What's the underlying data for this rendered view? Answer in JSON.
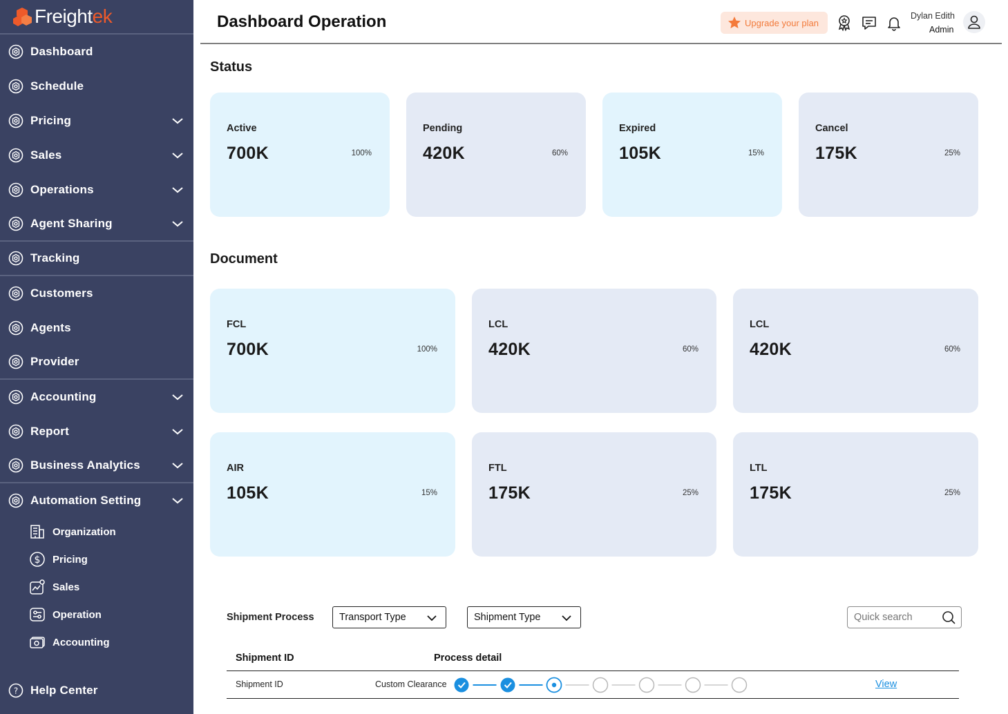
{
  "app": {
    "brand_main": "Freight",
    "brand_accent": "ek",
    "brand_color": "#ee5a2a"
  },
  "sidebar": {
    "items": [
      {
        "label": "Dashboard",
        "icon": "hexagon-icon",
        "chevron": false
      },
      {
        "label": "Schedule",
        "icon": "hexagon-icon",
        "chevron": false
      },
      {
        "label": "Pricing",
        "icon": "hexagon-icon",
        "chevron": true
      },
      {
        "label": "Sales",
        "icon": "hexagon-icon",
        "chevron": true
      },
      {
        "label": "Operations",
        "icon": "hexagon-icon",
        "chevron": true
      },
      {
        "label": "Agent Sharing",
        "icon": "hexagon-icon",
        "chevron": true
      },
      {
        "label": "Tracking",
        "icon": "hexagon-icon",
        "chevron": false
      },
      {
        "label": "Customers",
        "icon": "hexagon-icon",
        "chevron": false
      },
      {
        "label": "Agents",
        "icon": "hexagon-icon",
        "chevron": false
      },
      {
        "label": "Provider",
        "icon": "hexagon-icon",
        "chevron": false
      },
      {
        "label": "Accounting",
        "icon": "hexagon-icon",
        "chevron": true
      },
      {
        "label": "Report",
        "icon": "hexagon-icon",
        "chevron": true
      },
      {
        "label": "Business Analytics",
        "icon": "hexagon-icon",
        "chevron": true
      },
      {
        "label": "Automation Setting",
        "icon": "hexagon-icon",
        "chevron": true
      }
    ],
    "sub_items": [
      {
        "label": "Organization",
        "icon": "building-icon"
      },
      {
        "label": "Pricing",
        "icon": "dollar-icon"
      },
      {
        "label": "Sales",
        "icon": "sales-chart-icon"
      },
      {
        "label": "Operation",
        "icon": "sliders-icon"
      },
      {
        "label": "Accounting",
        "icon": "cash-icon"
      }
    ],
    "help_label": "Help Center"
  },
  "header": {
    "title": "Dashboard Operation",
    "upgrade_label": "Upgrade your plan",
    "user_name": "Dylan Edith",
    "user_role": "Admin"
  },
  "status": {
    "title": "Status",
    "cards": [
      {
        "label": "Active",
        "value": "700K",
        "percent": "100%"
      },
      {
        "label": "Pending",
        "value": "420K",
        "percent": "60%"
      },
      {
        "label": "Expired",
        "value": "105K",
        "percent": "15%"
      },
      {
        "label": "Cancel",
        "value": "175K",
        "percent": "25%"
      }
    ]
  },
  "document": {
    "title": "Document",
    "cards": [
      {
        "label": "FCL",
        "value": "700K",
        "percent": "100%"
      },
      {
        "label": "LCL",
        "value": "420K",
        "percent": "60%"
      },
      {
        "label": "LCL",
        "value": "420K",
        "percent": "60%"
      },
      {
        "label": "AIR",
        "value": "105K",
        "percent": "15%"
      },
      {
        "label": "FTL",
        "value": "175K",
        "percent": "25%"
      },
      {
        "label": "LTL",
        "value": "175K",
        "percent": "25%"
      }
    ]
  },
  "shipment": {
    "label": "Shipment Process",
    "transport_select": "Transport Type",
    "shipment_select": "Shipment Type",
    "search_placeholder": "Quick search",
    "columns": [
      "Shipment ID",
      "Process detail"
    ],
    "rows": [
      {
        "id": "Shipment ID",
        "stage": "Custom Clearance",
        "view_label": "View",
        "steps_completed": 2,
        "steps_total": 7
      }
    ]
  }
}
